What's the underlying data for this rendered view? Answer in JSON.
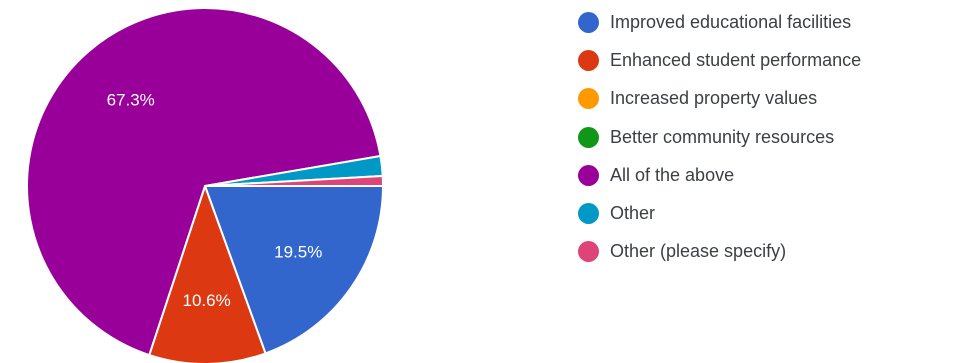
{
  "chart_data": {
    "type": "pie",
    "title": "",
    "legend_position": "right",
    "slices": [
      {
        "name": "Improved educational facilities",
        "value": 19.5,
        "label": "19.5%",
        "color": "#3366cc"
      },
      {
        "name": "Enhanced student performance",
        "value": 10.6,
        "label": "10.6%",
        "color": "#dc3912"
      },
      {
        "name": "Increased property values",
        "value": 0,
        "label": "",
        "color": "#ff9900"
      },
      {
        "name": "Better community resources",
        "value": 0,
        "label": "",
        "color": "#109618"
      },
      {
        "name": "All of the above",
        "value": 67.3,
        "label": "67.3%",
        "color": "#990099"
      },
      {
        "name": "Other",
        "value": 1.8,
        "label": "",
        "color": "#0099c6"
      },
      {
        "name": "Other (please specify)",
        "value": 0.9,
        "label": "",
        "color": "#dd4477"
      }
    ]
  }
}
